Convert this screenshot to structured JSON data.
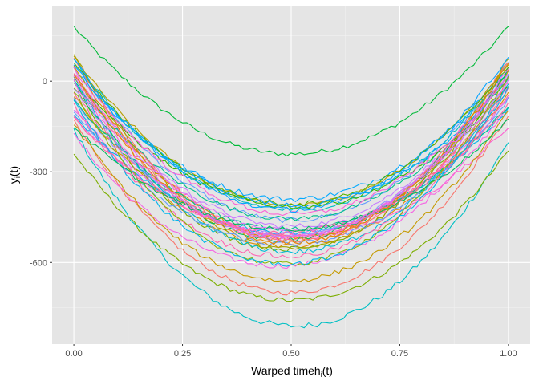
{
  "chart_data": {
    "type": "line",
    "xlabel_main": "Warped time",
    "xlabel_fn": "h",
    "xlabel_sub": "i",
    "xlabel_arg": "(t)",
    "ylabel_main": "y",
    "ylabel_sub": "i",
    "ylabel_arg": "(t)",
    "xlim": [
      -0.05,
      1.05
    ],
    "ylim": [
      -870,
      250
    ],
    "x_ticks": [
      0,
      0.25,
      0.5,
      0.75,
      1
    ],
    "x_tick_labels": [
      "0.00",
      "0.25",
      "0.50",
      "0.75",
      "1.00"
    ],
    "y_ticks": [
      0,
      -300,
      -600
    ],
    "y_tick_labels": [
      "0",
      "-300",
      "-600"
    ],
    "grid": true,
    "panel_background": "#e5e5e5",
    "grid_color": "#ffffff",
    "n_points": 101,
    "curve_model": "y(t) = y0 + (y1 - y0) * t - 4 * depth * t * (1 - t) with small noise",
    "series": [
      {
        "color": "#00ba38",
        "y0": 180,
        "y1": 180,
        "depth": 421,
        "noise": 8
      },
      {
        "color": "#00bfc4",
        "y0": -160,
        "y1": -200,
        "depth": 630,
        "noise": 10
      },
      {
        "color": "#7cae00",
        "y0": -240,
        "y1": -230,
        "depth": 490,
        "noise": 8
      },
      {
        "color": "#f8766d",
        "y0": -130,
        "y1": -110,
        "depth": 580,
        "noise": 8
      },
      {
        "color": "#f564e3",
        "y0": -180,
        "y1": -80,
        "depth": 480,
        "noise": 9
      },
      {
        "color": "#619cff",
        "y0": 60,
        "y1": 60,
        "depth": 520,
        "noise": 9
      },
      {
        "color": "#b79f00",
        "y0": 80,
        "y1": 60,
        "depth": 480,
        "noise": 7
      },
      {
        "color": "#00a9ff",
        "y0": 40,
        "y1": 40,
        "depth": 430,
        "noise": 9
      },
      {
        "color": "#c77cff",
        "y0": 20,
        "y1": 20,
        "depth": 500,
        "noise": 9
      },
      {
        "color": "#ff61c3",
        "y0": 30,
        "y1": -20,
        "depth": 520,
        "noise": 10
      },
      {
        "color": "#00c08b",
        "y0": 0,
        "y1": 10,
        "depth": 460,
        "noise": 8
      },
      {
        "color": "#de8c00",
        "y0": -50,
        "y1": -40,
        "depth": 500,
        "noise": 8
      },
      {
        "color": "#7cae00",
        "y0": -20,
        "y1": 30,
        "depth": 560,
        "noise": 9
      },
      {
        "color": "#f8766d",
        "y0": 80,
        "y1": 70,
        "depth": 600,
        "noise": 9
      },
      {
        "color": "#00bfc4",
        "y0": 70,
        "y1": 40,
        "depth": 480,
        "noise": 9
      },
      {
        "color": "#e76bf3",
        "y0": -90,
        "y1": -60,
        "depth": 430,
        "noise": 8
      },
      {
        "color": "#00b4f0",
        "y0": -110,
        "y1": -90,
        "depth": 400,
        "noise": 8
      },
      {
        "color": "#9590ff",
        "y0": -60,
        "y1": -10,
        "depth": 470,
        "noise": 9
      },
      {
        "color": "#fd61d1",
        "y0": -120,
        "y1": -150,
        "depth": 380,
        "noise": 9
      },
      {
        "color": "#a3a500",
        "y0": 90,
        "y1": 80,
        "depth": 640,
        "noise": 8
      },
      {
        "color": "#39b600",
        "y0": 10,
        "y1": -20,
        "depth": 410,
        "noise": 8
      },
      {
        "color": "#00bc59",
        "y0": -10,
        "y1": 40,
        "depth": 540,
        "noise": 9
      },
      {
        "color": "#d89000",
        "y0": 50,
        "y1": 30,
        "depth": 560,
        "noise": 8
      },
      {
        "color": "#ff6a98",
        "y0": -40,
        "y1": -30,
        "depth": 480,
        "noise": 9
      },
      {
        "color": "#00bcd8",
        "y0": 0,
        "y1": -10,
        "depth": 560,
        "noise": 9
      },
      {
        "color": "#619cff",
        "y0": -100,
        "y1": -60,
        "depth": 460,
        "noise": 9
      },
      {
        "color": "#c49a00",
        "y0": -140,
        "y1": -100,
        "depth": 540,
        "noise": 8
      },
      {
        "color": "#f8766d",
        "y0": 20,
        "y1": 0,
        "depth": 540,
        "noise": 9
      },
      {
        "color": "#00c094",
        "y0": -60,
        "y1": -80,
        "depth": 420,
        "noise": 8
      },
      {
        "color": "#dc71fa",
        "y0": 10,
        "y1": 0,
        "depth": 500,
        "noise": 9
      },
      {
        "color": "#ff64b0",
        "y0": -80,
        "y1": -40,
        "depth": 520,
        "noise": 9
      },
      {
        "color": "#53b400",
        "y0": 60,
        "y1": 50,
        "depth": 460,
        "noise": 8
      },
      {
        "color": "#00a5ff",
        "y0": 50,
        "y1": 10,
        "depth": 440,
        "noise": 9
      },
      {
        "color": "#fb61d7",
        "y0": 40,
        "y1": 20,
        "depth": 470,
        "noise": 9
      },
      {
        "color": "#8ab504",
        "y0": -30,
        "y1": 20,
        "depth": 600,
        "noise": 8
      },
      {
        "color": "#00b6eb",
        "y0": -70,
        "y1": -20,
        "depth": 560,
        "noise": 9
      },
      {
        "color": "#e58700",
        "y0": 30,
        "y1": 60,
        "depth": 580,
        "noise": 8
      },
      {
        "color": "#b983ff",
        "y0": -20,
        "y1": 30,
        "depth": 520,
        "noise": 9
      },
      {
        "color": "#ff67a4",
        "y0": -120,
        "y1": -80,
        "depth": 400,
        "noise": 9
      },
      {
        "color": "#06a4ff",
        "y0": 70,
        "y1": 80,
        "depth": 500,
        "noise": 9
      },
      {
        "color": "#00bd5c",
        "y0": -150,
        "y1": -130,
        "depth": 350,
        "noise": 8
      },
      {
        "color": "#f763e0",
        "y0": 0,
        "y1": 40,
        "depth": 540,
        "noise": 10
      }
    ]
  }
}
